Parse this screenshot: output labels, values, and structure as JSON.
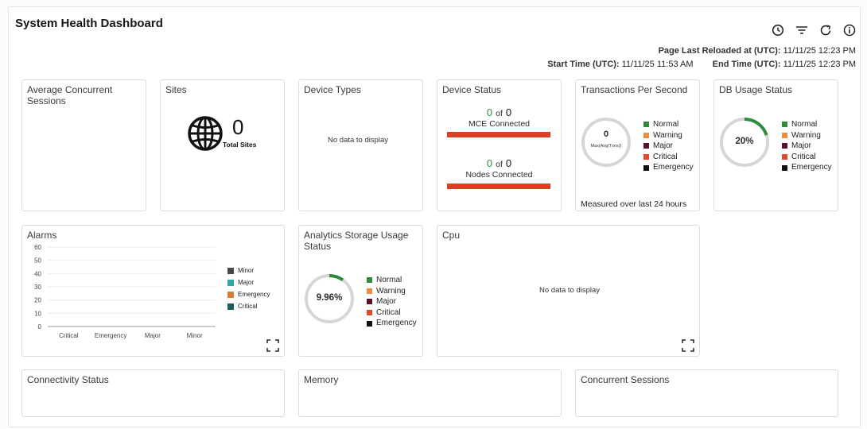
{
  "header": {
    "title": "System Health Dashboard",
    "reload_label": "Page Last Reloaded at (UTC):",
    "reload_value": "11/11/25 12:23 PM",
    "start_label": "Start Time (UTC):",
    "start_value": "11/11/25 11:53 AM",
    "end_label": "End Time (UTC):",
    "end_value": "11/11/25 12:23 PM",
    "icons": [
      "clock-icon",
      "filter-icon",
      "refresh-icon",
      "info-icon"
    ]
  },
  "cards": {
    "avg_sessions": {
      "title": "Average Concurrent Sessions"
    },
    "sites": {
      "title": "Sites",
      "count": "0",
      "count_label": "Total Sites"
    },
    "device_types": {
      "title": "Device Types",
      "empty": "No data to display"
    },
    "device_status": {
      "title": "Device Status",
      "mce_num": "0",
      "mce_of": "of",
      "mce_total": "0",
      "mce_label": "MCE Connected",
      "nodes_num": "0",
      "nodes_of": "of",
      "nodes_total": "0",
      "nodes_label": "Nodes Connected"
    },
    "tps": {
      "title": "Transactions Per Second",
      "value": "0",
      "sub": "Max(Avg(Txns))",
      "footer": "Measured over last 24 hours"
    },
    "db_usage": {
      "title": "DB Usage Status",
      "value": "20%",
      "fraction": 0.2
    },
    "alarms": {
      "title": "Alarms",
      "legend": [
        "Minor",
        "Major",
        "Emergency",
        "Critical"
      ]
    },
    "analytics": {
      "title": "Analytics Storage Usage Status",
      "value": "9.96%",
      "fraction": 0.0996
    },
    "cpu": {
      "title": "Cpu",
      "empty": "No data to display"
    },
    "connectivity": {
      "title": "Connectivity Status"
    },
    "memory": {
      "title": "Memory"
    },
    "concurrent": {
      "title": "Concurrent Sessions"
    }
  },
  "status_legend": [
    {
      "label": "Normal",
      "color": "#2e8b3a"
    },
    {
      "label": "Warning",
      "color": "#f08a3c"
    },
    {
      "label": "Major",
      "color": "#5a1020"
    },
    {
      "label": "Critical",
      "color": "#e04a2a"
    },
    {
      "label": "Emergency",
      "color": "#111111"
    }
  ],
  "colors": {
    "accent_green": "#2e8b3a",
    "bar_red": "#d94123",
    "ring_track": "#d6d6d6"
  },
  "chart_data": {
    "type": "bar",
    "title": "Alarms",
    "categories": [
      "Critical",
      "Emergency",
      "Major",
      "Minor"
    ],
    "series": [
      {
        "name": "Minor",
        "color": "#4a4642",
        "values": [
          0,
          0,
          0,
          0
        ]
      },
      {
        "name": "Major",
        "color": "#2fa8a0",
        "values": [
          0,
          0,
          0,
          0
        ]
      },
      {
        "name": "Emergency",
        "color": "#d77b33",
        "values": [
          0,
          0,
          0,
          0
        ]
      },
      {
        "name": "Critical",
        "color": "#1f5e5e",
        "values": [
          0,
          0,
          0,
          0
        ]
      }
    ],
    "yticks": [
      "60",
      "50",
      "40",
      "30",
      "20",
      "10",
      "0"
    ],
    "ylim": [
      0,
      60
    ],
    "grid": true,
    "legend": "right"
  }
}
